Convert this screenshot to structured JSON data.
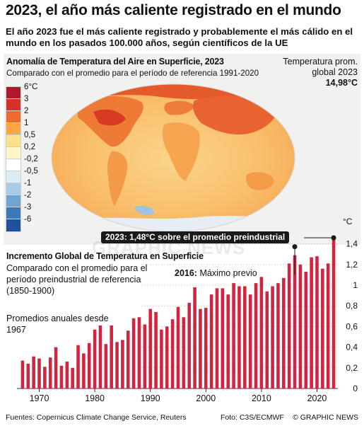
{
  "header": {
    "title": "2023, el año más caliente registrado en el mundo",
    "subtitle": "El año 2023 fue el más caliente registrado y probablemente el más cálido en el mundo en los pasados 100.000 años, según científicos de la UE"
  },
  "map_panel": {
    "title": "Anomalía de Temperatura del Aire en Superficie, 2023",
    "subtitle": "Comparado con el promedio para el período de referencia 1991-2020",
    "temp_label": "Temperatura prom. global 2023",
    "temp_value": "14,98°C",
    "legend": {
      "labels": [
        "6°C",
        "3",
        "2",
        "1",
        "0,5",
        "0,2",
        "-0,2",
        "-0,5",
        "-1",
        "-2",
        "-3",
        "-6"
      ],
      "colors": [
        "#b2182b",
        "#d73027",
        "#ef6b2c",
        "#fba545",
        "#fde08a",
        "#fff6c8",
        "#ffffff",
        "#dcecf6",
        "#a9cce6",
        "#6ea6d2",
        "#3d78b8",
        "#21509a"
      ]
    }
  },
  "chart_panel": {
    "title": "Incremento Global de Temperatura en Superficie",
    "subtitle": "Comparado con el promedio para el período preindustrial de referencia (1850-1900)",
    "annual_label": "Promedios anuales desde 1967",
    "callout_2023": "2023: 1,48°C sobre el promedio preindustrial",
    "callout_2016_bold": "2016:",
    "callout_2016_rest": " Máximo previo",
    "unit": "°C",
    "watermark": "GRAPHIC NEWS"
  },
  "footer": {
    "sources": "Fuentes: Copernicus Climate Change Service, Reuters",
    "photo": "Foto: C3S/ECMWF",
    "brand": "© GRAPHIC NEWS"
  },
  "colors": {
    "bar": "#d2243e",
    "dark": "#1a1a1a"
  },
  "chart_data": {
    "type": "bar",
    "title": "Incremento Global de Temperatura en Superficie",
    "ylabel": "°C",
    "ylim": [
      0,
      1.5
    ],
    "yticks": [
      0,
      0.2,
      0.4,
      0.6,
      0.8,
      1.0,
      1.2,
      1.4
    ],
    "ytick_labels": [
      "0",
      "0,2",
      "0,4",
      "0,6",
      "0,8",
      "1",
      "1,2",
      "1,4"
    ],
    "xticks": [
      1970,
      1980,
      1990,
      2000,
      2010,
      2020
    ],
    "x": [
      1967,
      1968,
      1969,
      1970,
      1971,
      1972,
      1973,
      1974,
      1975,
      1976,
      1977,
      1978,
      1979,
      1980,
      1981,
      1982,
      1983,
      1984,
      1985,
      1986,
      1987,
      1988,
      1989,
      1990,
      1991,
      1992,
      1993,
      1994,
      1995,
      1996,
      1997,
      1998,
      1999,
      2000,
      2001,
      2002,
      2003,
      2004,
      2005,
      2006,
      2007,
      2008,
      2009,
      2010,
      2011,
      2012,
      2013,
      2014,
      2015,
      2016,
      2017,
      2018,
      2019,
      2020,
      2021,
      2022,
      2023
    ],
    "values": [
      0.27,
      0.24,
      0.31,
      0.29,
      0.21,
      0.3,
      0.4,
      0.22,
      0.26,
      0.2,
      0.42,
      0.34,
      0.44,
      0.57,
      0.61,
      0.43,
      0.61,
      0.45,
      0.47,
      0.56,
      0.68,
      0.69,
      0.62,
      0.77,
      0.74,
      0.57,
      0.6,
      0.67,
      0.79,
      0.69,
      0.83,
      0.98,
      0.77,
      0.78,
      0.91,
      0.97,
      0.97,
      0.91,
      1.02,
      0.99,
      0.99,
      0.91,
      1.02,
      1.08,
      0.94,
      0.99,
      1.02,
      1.07,
      1.21,
      1.29,
      1.2,
      1.13,
      1.27,
      1.28,
      1.16,
      1.21,
      1.48
    ]
  }
}
